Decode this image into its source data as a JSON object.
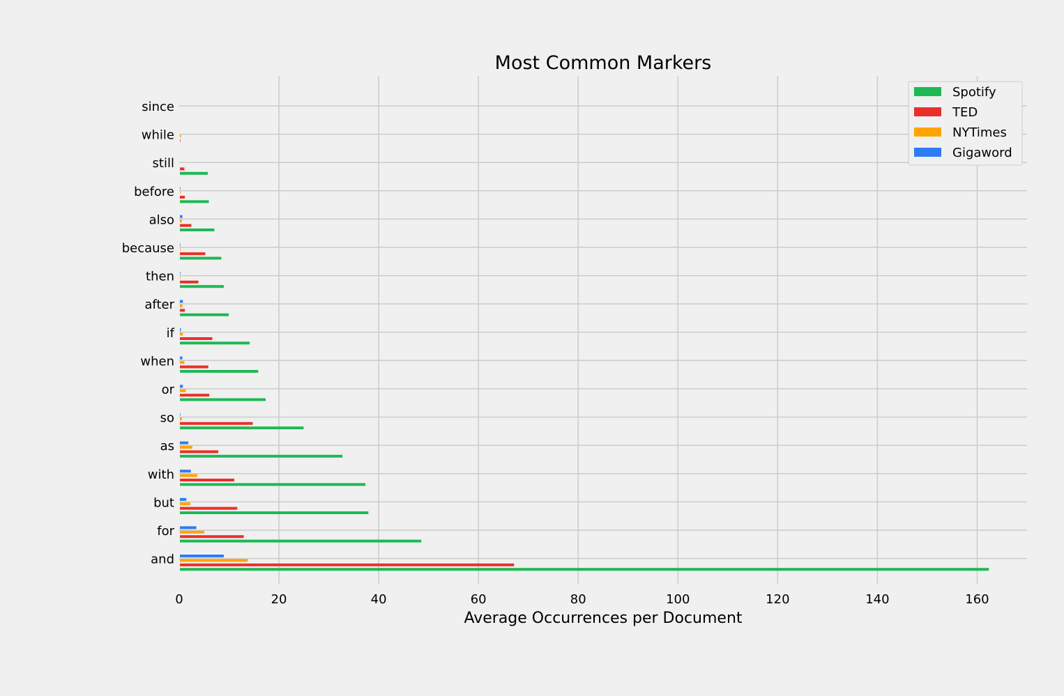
{
  "chart_data": {
    "type": "bar",
    "orientation": "horizontal",
    "title": "Most Common Markers",
    "xlabel": "Average Occurrences per Document",
    "ylabel": "",
    "xlim": [
      0,
      170
    ],
    "xticks": [
      0,
      20,
      40,
      60,
      80,
      100,
      120,
      140,
      160
    ],
    "grid": true,
    "legend_position": "top-right",
    "categories": [
      "and",
      "for",
      "but",
      "with",
      "as",
      "so",
      "or",
      "when",
      "if",
      "after",
      "then",
      "because",
      "also",
      "before",
      "still",
      "while",
      "since"
    ],
    "series": [
      {
        "name": "Spotify",
        "color": "#1db954",
        "values": [
          162.2,
          48.4,
          37.8,
          37.2,
          32.6,
          24.8,
          17.2,
          15.7,
          14.0,
          9.8,
          8.8,
          8.3,
          6.9,
          5.8,
          5.6,
          0.0,
          0.0
        ]
      },
      {
        "name": "TED",
        "color": "#e8302b",
        "values": [
          67.0,
          12.8,
          11.5,
          10.9,
          7.7,
          14.6,
          5.9,
          5.7,
          6.5,
          1.0,
          3.7,
          5.1,
          2.3,
          1.0,
          0.9,
          0.1,
          0.0
        ]
      },
      {
        "name": "NYTimes",
        "color": "#ffa500",
        "values": [
          13.6,
          4.9,
          2.1,
          3.5,
          2.5,
          0.4,
          1.2,
          0.9,
          0.6,
          0.5,
          0.1,
          0.1,
          0.4,
          0.1,
          0.0,
          0.2,
          0.0
        ]
      },
      {
        "name": "Gigaword",
        "color": "#2d7cf6",
        "values": [
          8.8,
          3.3,
          1.3,
          2.2,
          1.7,
          0.1,
          0.6,
          0.5,
          0.2,
          0.6,
          0.1,
          0.1,
          0.5,
          0.1,
          0.0,
          0.0,
          0.0
        ]
      }
    ]
  }
}
